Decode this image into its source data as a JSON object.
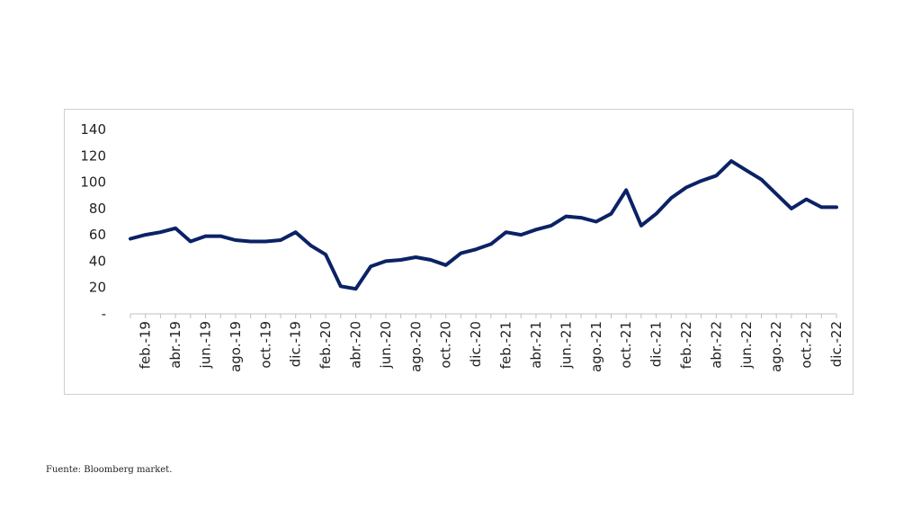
{
  "chart_data": {
    "type": "line",
    "title": "",
    "xlabel": "",
    "ylabel": "",
    "ylim": [
      0,
      140
    ],
    "yticks": [
      {
        "value": 0,
        "label": "-"
      },
      {
        "value": 20,
        "label": "20"
      },
      {
        "value": 40,
        "label": "40"
      },
      {
        "value": 60,
        "label": "60"
      },
      {
        "value": 80,
        "label": "80"
      },
      {
        "value": 100,
        "label": "100"
      },
      {
        "value": 120,
        "label": "120"
      },
      {
        "value": 140,
        "label": "140"
      }
    ],
    "x_tick_labels": [
      "feb.-19",
      "abr.-19",
      "jun.-19",
      "ago.-19",
      "oct.-19",
      "dic.-19",
      "feb.-20",
      "abr.-20",
      "jun.-20",
      "ago.-20",
      "oct.-20",
      "dic.-20",
      "feb.-21",
      "abr.-21",
      "jun.-21",
      "ago.-21",
      "oct.-21",
      "dic.-21",
      "feb.-22",
      "abr.-22",
      "jun.-22",
      "ago.-22",
      "oct.-22",
      "dic.-22"
    ],
    "x": [
      "ene.-19",
      "feb.-19",
      "mar.-19",
      "abr.-19",
      "may.-19",
      "jun.-19",
      "jul.-19",
      "ago.-19",
      "sep.-19",
      "oct.-19",
      "nov.-19",
      "dic.-19",
      "ene.-20",
      "feb.-20",
      "mar.-20",
      "abr.-20",
      "may.-20",
      "jun.-20",
      "jul.-20",
      "ago.-20",
      "sep.-20",
      "oct.-20",
      "nov.-20",
      "dic.-20",
      "ene.-21",
      "feb.-21",
      "mar.-21",
      "abr.-21",
      "may.-21",
      "jun.-21",
      "jul.-21",
      "ago.-21",
      "sep.-21",
      "oct.-21",
      "nov.-21",
      "dic.-21",
      "ene.-22",
      "feb.-22",
      "mar.-22",
      "abr.-22",
      "may.-22",
      "jun.-22",
      "jul.-22",
      "ago.-22",
      "sep.-22",
      "oct.-22",
      "nov.-22",
      "dic.-22"
    ],
    "series": [
      {
        "color": "#0b2265",
        "values": [
          57,
          60,
          62,
          65,
          55,
          59,
          59,
          56,
          55,
          55,
          56,
          62,
          52,
          45,
          21,
          19,
          36,
          40,
          41,
          43,
          41,
          37,
          46,
          49,
          53,
          62,
          60,
          64,
          67,
          74,
          73,
          70,
          76,
          94,
          67,
          76,
          88,
          96,
          101,
          105,
          116,
          109,
          102,
          91,
          80,
          87,
          81,
          81
        ]
      }
    ],
    "grid": false,
    "legend": "none"
  },
  "source_note": "Fuente: Bloomberg market."
}
